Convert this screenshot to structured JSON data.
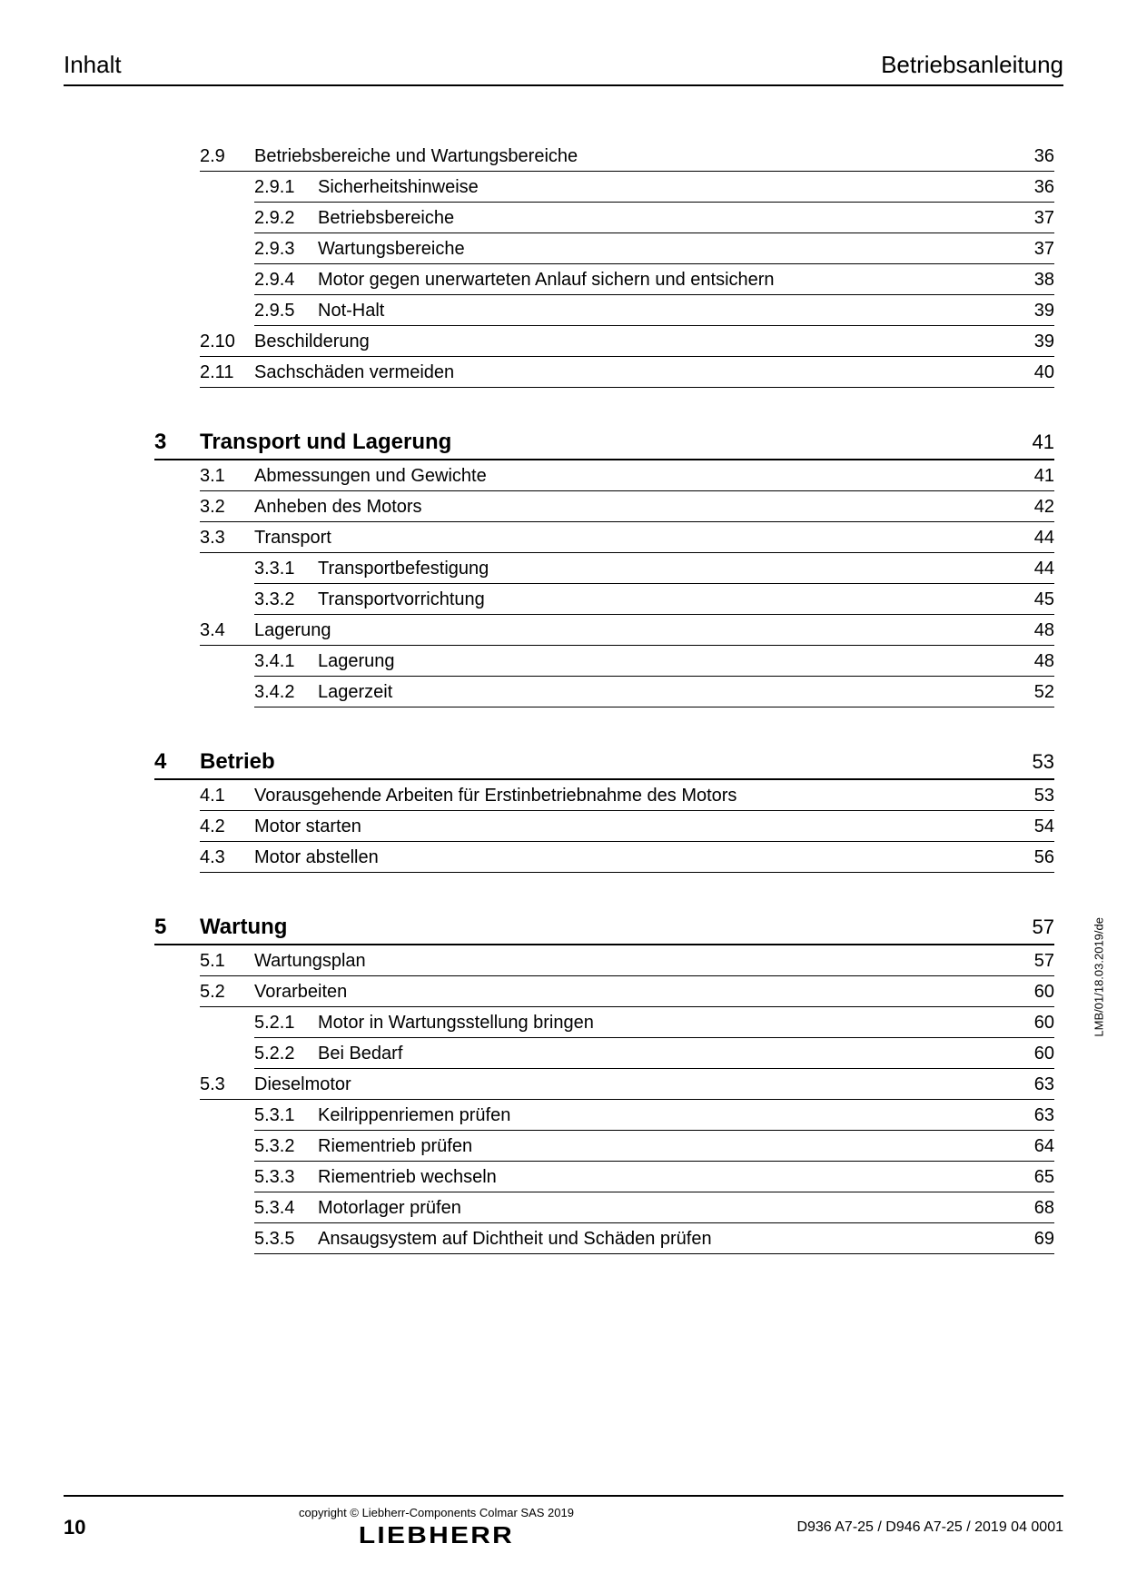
{
  "header": {
    "left": "Inhalt",
    "right": "Betriebsanleitung"
  },
  "toc": [
    {
      "type": "section",
      "sec": "2.9",
      "title": "Betriebsbereiche und Wartungsbereiche",
      "page": "36"
    },
    {
      "type": "sub",
      "sub": "2.9.1",
      "title": "Sicherheitshinweise",
      "page": "36"
    },
    {
      "type": "sub",
      "sub": "2.9.2",
      "title": "Betriebsbereiche",
      "page": "37"
    },
    {
      "type": "sub",
      "sub": "2.9.3",
      "title": "Wartungsbereiche",
      "page": "37"
    },
    {
      "type": "sub",
      "sub": "2.9.4",
      "title": "Motor gegen unerwarteten Anlauf sichern und entsichern",
      "page": "38"
    },
    {
      "type": "sub",
      "sub": "2.9.5",
      "title": "Not-Halt",
      "page": "39"
    },
    {
      "type": "section",
      "sec": "2.10",
      "title": "Beschilderung",
      "page": "39"
    },
    {
      "type": "section",
      "sec": "2.11",
      "title": "Sachschäden vermeiden",
      "page": "40"
    },
    {
      "type": "chapter",
      "ch": "3",
      "title": "Transport und Lagerung",
      "page": "41"
    },
    {
      "type": "section",
      "sec": "3.1",
      "title": "Abmessungen und Gewichte",
      "page": "41"
    },
    {
      "type": "section",
      "sec": "3.2",
      "title": "Anheben des Motors",
      "page": "42"
    },
    {
      "type": "section",
      "sec": "3.3",
      "title": "Transport",
      "page": "44"
    },
    {
      "type": "sub",
      "sub": "3.3.1",
      "title": "Transportbefestigung",
      "page": "44"
    },
    {
      "type": "sub",
      "sub": "3.3.2",
      "title": "Transportvorrichtung",
      "page": "45"
    },
    {
      "type": "section",
      "sec": "3.4",
      "title": "Lagerung",
      "page": "48"
    },
    {
      "type": "sub",
      "sub": "3.4.1",
      "title": "Lagerung",
      "page": "48"
    },
    {
      "type": "sub",
      "sub": "3.4.2",
      "title": "Lagerzeit",
      "page": "52"
    },
    {
      "type": "chapter",
      "ch": "4",
      "title": "Betrieb",
      "page": "53"
    },
    {
      "type": "section",
      "sec": "4.1",
      "title": "Vorausgehende Arbeiten für Erstinbetriebnahme des Motors",
      "page": "53"
    },
    {
      "type": "section",
      "sec": "4.2",
      "title": "Motor starten",
      "page": "54"
    },
    {
      "type": "section",
      "sec": "4.3",
      "title": "Motor abstellen",
      "page": "56"
    },
    {
      "type": "chapter",
      "ch": "5",
      "title": "Wartung",
      "page": "57"
    },
    {
      "type": "section",
      "sec": "5.1",
      "title": "Wartungsplan",
      "page": "57"
    },
    {
      "type": "section",
      "sec": "5.2",
      "title": "Vorarbeiten",
      "page": "60"
    },
    {
      "type": "sub",
      "sub": "5.2.1",
      "title": "Motor in Wartungsstellung bringen",
      "page": "60"
    },
    {
      "type": "sub",
      "sub": "5.2.2",
      "title": "Bei Bedarf",
      "page": "60"
    },
    {
      "type": "section",
      "sec": "5.3",
      "title": "Dieselmotor",
      "page": "63"
    },
    {
      "type": "sub",
      "sub": "5.3.1",
      "title": "Keilrippenriemen prüfen",
      "page": "63"
    },
    {
      "type": "sub",
      "sub": "5.3.2",
      "title": "Riementrieb prüfen",
      "page": "64"
    },
    {
      "type": "sub",
      "sub": "5.3.3",
      "title": "Riementrieb wechseln",
      "page": "65"
    },
    {
      "type": "sub",
      "sub": "5.3.4",
      "title": "Motorlager prüfen",
      "page": "68"
    },
    {
      "type": "sub",
      "sub": "5.3.5",
      "title": "Ansaugsystem auf Dichtheit und Schäden prüfen",
      "page": "69"
    }
  ],
  "side_text": "LMB/01/18.03.2019/de",
  "footer": {
    "page_number": "10",
    "copyright": "copyright © Liebherr-Components Colmar SAS 2019",
    "logo": "LIEBHERR",
    "doc_id": "D936 A7-25 / D946 A7-25 / 2019 04 0001"
  }
}
